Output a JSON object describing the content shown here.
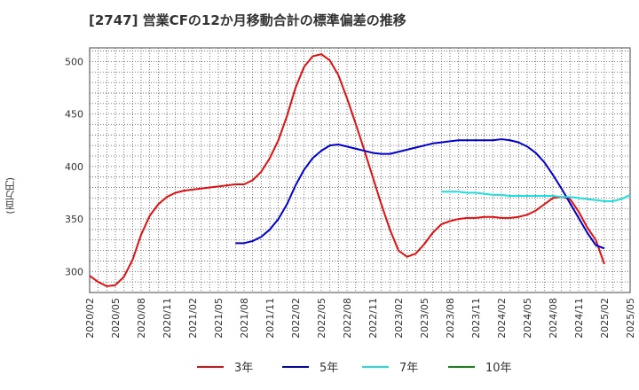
{
  "title": "[2747]  営業CFの12か月移動合計の標準偏差の推移",
  "y_unit": "(百万円)",
  "colors": {
    "3y": "#dd1111",
    "5y": "#0000cc",
    "7y": "#22dddd",
    "10y": "#118811",
    "grid": "#555555",
    "frame": "#444444"
  },
  "chart_data": {
    "type": "line",
    "title": "[2747]  営業CFの12か月移動合計の標準偏差の推移",
    "ylabel": "(百万円)",
    "xlabel": "",
    "ylim": [
      280,
      513
    ],
    "yticks": [
      300,
      350,
      400,
      450,
      500
    ],
    "x_range": [
      "2020-02",
      "2025-05"
    ],
    "x_ticks": [
      "2020/02",
      "2020/05",
      "2020/08",
      "2020/11",
      "2021/02",
      "2021/05",
      "2021/08",
      "2021/11",
      "2022/02",
      "2022/05",
      "2022/08",
      "2022/11",
      "2023/02",
      "2023/05",
      "2023/08",
      "2023/11",
      "2024/02",
      "2024/05",
      "2024/08",
      "2024/11",
      "2025/02",
      "2025/05"
    ],
    "grid": true,
    "legend_position": "bottom",
    "series": [
      {
        "name": "3年",
        "color": "#dd1111",
        "start": "2020-02",
        "values": [
          296,
          290,
          286,
          287,
          295,
          311,
          335,
          353,
          364,
          371,
          375,
          377,
          378,
          379,
          380,
          381,
          382,
          383,
          383,
          387,
          395,
          408,
          425,
          448,
          475,
          495,
          505,
          507,
          501,
          487,
          465,
          441,
          416,
          390,
          364,
          340,
          320,
          314,
          317,
          326,
          337,
          345,
          348,
          350,
          351,
          351,
          352,
          352,
          351,
          351,
          352,
          354,
          358,
          364,
          370,
          371,
          369,
          357,
          342,
          330,
          307
        ]
      },
      {
        "name": "5年",
        "color": "#0000cc",
        "start": "2021-07",
        "values": [
          327,
          327,
          329,
          333,
          340,
          350,
          364,
          382,
          397,
          408,
          415,
          420,
          421,
          419,
          417,
          415,
          413,
          412,
          412,
          414,
          416,
          418,
          420,
          422,
          423,
          424,
          425,
          425,
          425,
          425,
          425,
          426,
          425,
          423,
          419,
          413,
          404,
          392,
          379,
          365,
          351,
          337,
          325,
          322
        ]
      },
      {
        "name": "7年",
        "color": "#22dddd",
        "start": "2023-07",
        "values": [
          376,
          376,
          376,
          375,
          375,
          374,
          373,
          373,
          372,
          372,
          372,
          372,
          372,
          372,
          371,
          371,
          370,
          369,
          368,
          367,
          367,
          369,
          373
        ]
      },
      {
        "name": "10年",
        "color": "#118811",
        "start": "2025-02",
        "values": []
      }
    ]
  }
}
